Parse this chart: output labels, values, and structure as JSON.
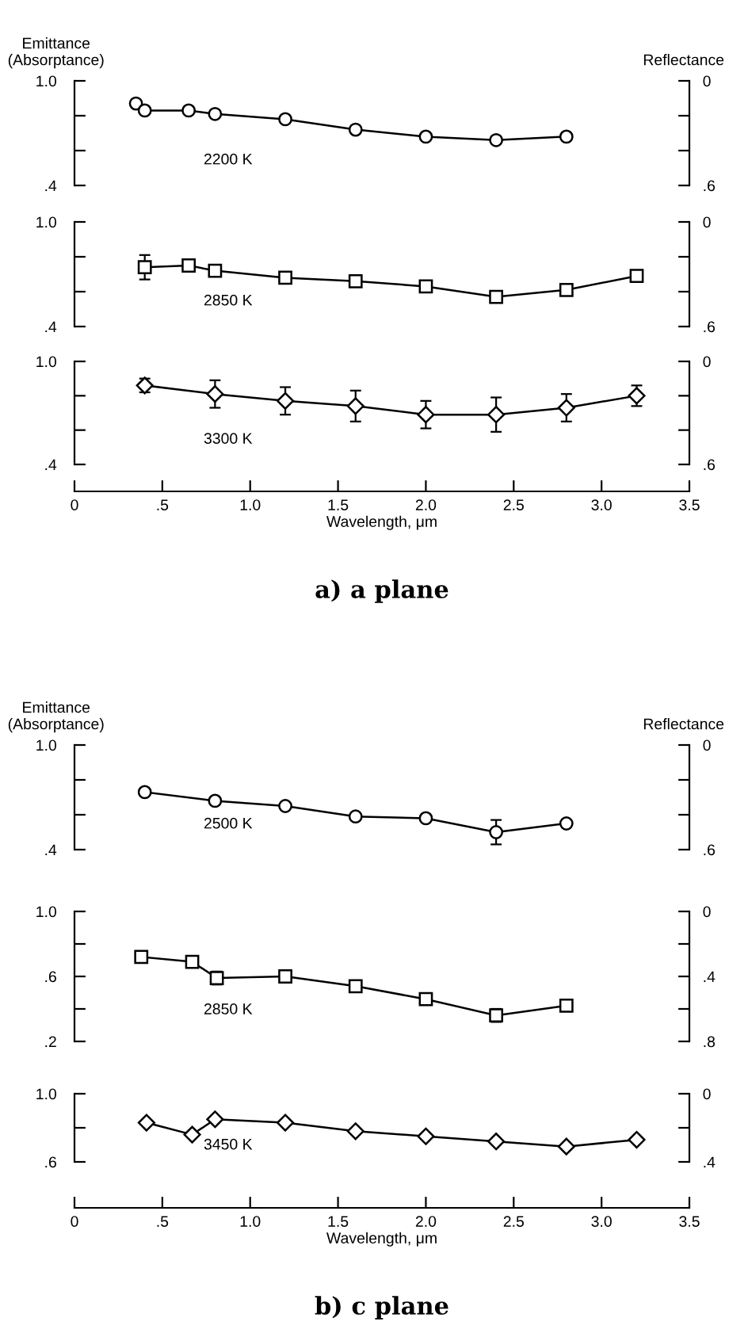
{
  "chart_data": [
    {
      "type": "line",
      "ylabel": "Emittance\n(Absorptance)",
      "y2label": "Reflectance",
      "x": [
        0.35,
        0.4,
        0.65,
        0.8,
        1.2,
        1.6,
        2.0,
        2.4,
        2.8
      ],
      "series": [
        {
          "name": "2200 K",
          "color": "#000000",
          "marker": "circle",
          "values": [
            0.87,
            0.83,
            0.83,
            0.81,
            0.78,
            0.72,
            0.68,
            0.66,
            0.68
          ]
        }
      ],
      "xlim": [
        0,
        3.5
      ],
      "ylim": [
        0.4,
        1.0
      ],
      "yticks": [
        {
          "value": 0.4,
          "label": ".4"
        },
        {
          "value": 0.6,
          "label": null
        },
        {
          "value": 0.8,
          "label": null
        },
        {
          "value": 1.0,
          "label": "1.0"
        }
      ],
      "y2lim": [
        0.6,
        0
      ],
      "y2ticks": [
        {
          "value": 0.6,
          "label": ".6"
        },
        {
          "value": 0.4,
          "label": null
        },
        {
          "value": 0.2,
          "label": null
        },
        0
      ],
      "tick_labels": "y",
      "line_style": "solid"
    },
    {
      "type": "line",
      "x": [
        0.4,
        0.65,
        0.8,
        1.2,
        1.6,
        2.0,
        2.4,
        2.8,
        3.2
      ],
      "series": [
        {
          "name": "2850 K",
          "color": "#000000",
          "marker": "square",
          "values": [
            0.74,
            0.75,
            0.72,
            0.68,
            0.66,
            0.63,
            0.57,
            0.61,
            0.69
          ],
          "errors": [
            0.07,
            null,
            null,
            null,
            null,
            null,
            null,
            null,
            0.02
          ]
        }
      ],
      "xlim": [
        0,
        3.5
      ],
      "ylim": [
        0.4,
        1.0
      ],
      "yticks": [
        {
          "value": 0.4,
          "label": ".4"
        },
        {
          "value": 0.6,
          "label": null
        },
        {
          "value": 0.8,
          "label": null
        },
        {
          "value": 1.0,
          "label": "1.0"
        }
      ],
      "y2lim": [
        0.6,
        0
      ],
      "y2ticks": [
        {
          "value": 0.6,
          "label": ".6"
        },
        {
          "value": 0.4,
          "label": null
        },
        {
          "value": 0.2,
          "label": null
        },
        0
      ],
      "tick_labels": "y",
      "line_style": "solid"
    },
    {
      "type": "line",
      "xlabel": "Wavelength, μm",
      "annotations": [
        "a) a plane"
      ],
      "x": [
        0.4,
        0.8,
        1.2,
        1.6,
        2.0,
        2.4,
        2.8,
        3.2
      ],
      "series": [
        {
          "name": "3300 K",
          "color": "#000000",
          "marker": "diamond",
          "values": [
            0.86,
            0.81,
            0.77,
            0.74,
            0.69,
            0.69,
            0.73,
            0.8
          ],
          "errors": [
            0.04,
            0.08,
            0.08,
            0.09,
            0.08,
            0.1,
            0.08,
            0.06
          ]
        }
      ],
      "xlim": [
        0,
        3.5
      ],
      "xticks": [
        0,
        {
          "value": 0.5,
          "label": ".5"
        },
        {
          "value": 1,
          "label": "1.0"
        },
        1.5,
        {
          "value": 2,
          "label": "2.0"
        },
        2.5,
        {
          "value": 3,
          "label": "3.0"
        },
        3.5
      ],
      "ylim": [
        0.4,
        1.0
      ],
      "yticks": [
        {
          "value": 0.4,
          "label": ".4"
        },
        {
          "value": 0.6,
          "label": null
        },
        {
          "value": 0.8,
          "label": null
        },
        {
          "value": 1.0,
          "label": "1.0"
        }
      ],
      "y2lim": [
        0.6,
        0
      ],
      "y2ticks": [
        {
          "value": 0.6,
          "label": ".6"
        },
        {
          "value": 0.4,
          "label": null
        },
        {
          "value": 0.2,
          "label": null
        },
        0
      ],
      "line_style": "solid"
    },
    {
      "type": "line",
      "ylabel": "Emittance\n(Absorptance)",
      "y2label": "Reflectance",
      "x": [
        0.4,
        0.8,
        1.2,
        1.6,
        2.0,
        2.4,
        2.8
      ],
      "series": [
        {
          "name": "2500 K",
          "color": "#000000",
          "marker": "circle",
          "values": [
            0.73,
            0.68,
            0.65,
            0.59,
            0.58,
            0.5,
            0.55
          ],
          "errors": [
            null,
            null,
            null,
            null,
            null,
            0.07,
            null
          ]
        }
      ],
      "xlim": [
        0,
        3.5
      ],
      "ylim": [
        0.4,
        1.0
      ],
      "yticks": [
        {
          "value": 0.4,
          "label": ".4"
        },
        {
          "value": 0.6,
          "label": null
        },
        {
          "value": 0.8,
          "label": null
        },
        {
          "value": 1.0,
          "label": "1.0"
        }
      ],
      "y2lim": [
        0.6,
        0
      ],
      "y2ticks": [
        {
          "value": 0.6,
          "label": ".6"
        },
        {
          "value": 0.4,
          "label": null
        },
        {
          "value": 0.2,
          "label": null
        },
        0
      ],
      "tick_labels": "y",
      "line_style": "solid"
    },
    {
      "type": "line",
      "x": [
        0.38,
        0.67,
        0.81,
        1.2,
        1.6,
        2.0,
        2.4,
        2.8
      ],
      "series": [
        {
          "name": "2850 K",
          "color": "#000000",
          "marker": "square",
          "values": [
            0.72,
            0.69,
            0.59,
            0.6,
            0.54,
            0.46,
            0.36,
            0.42
          ],
          "errors": [
            0.02,
            null,
            0.04,
            null,
            null,
            null,
            0.04,
            0.03
          ]
        }
      ],
      "xlim": [
        0,
        3.5
      ],
      "ylim": [
        0.2,
        1.0
      ],
      "yticks": [
        {
          "value": 0.2,
          "label": ".2"
        },
        {
          "value": 0.4,
          "label": null
        },
        {
          "value": 0.6,
          "label": ".6"
        },
        {
          "value": 0.8,
          "label": null
        },
        {
          "value": 1.0,
          "label": "1.0"
        }
      ],
      "y2lim": [
        0.8,
        0
      ],
      "y2ticks": [
        {
          "value": 0.8,
          "label": ".8"
        },
        {
          "value": 0.6,
          "label": null
        },
        {
          "value": 0.4,
          "label": ".4"
        },
        {
          "value": 0.2,
          "label": null
        },
        0
      ],
      "tick_labels": "y",
      "line_style": "solid"
    },
    {
      "type": "line",
      "xlabel": "Wavelength, μm",
      "annotations": [
        "b) c plane"
      ],
      "x": [
        0.41,
        0.67,
        0.8,
        1.2,
        1.6,
        2.0,
        2.4,
        2.8,
        3.2
      ],
      "series": [
        {
          "name": "3450 K",
          "color": "#000000",
          "marker": "diamond",
          "values": [
            0.83,
            0.76,
            0.85,
            0.83,
            0.78,
            0.75,
            0.72,
            0.69,
            0.73
          ]
        }
      ],
      "xlim": [
        0,
        3.5
      ],
      "xticks": [
        0,
        {
          "value": 0.5,
          "label": ".5"
        },
        {
          "value": 1,
          "label": "1.0"
        },
        1.5,
        {
          "value": 2,
          "label": "2.0"
        },
        2.5,
        {
          "value": 3,
          "label": "3.0"
        },
        3.5
      ],
      "ylim": [
        0.6,
        1.0
      ],
      "yticks": [
        {
          "value": 0.6,
          "label": ".6"
        },
        {
          "value": 0.8,
          "label": null
        },
        {
          "value": 1.0,
          "label": "1.0"
        }
      ],
      "y2lim": [
        0.4,
        0
      ],
      "y2ticks": [
        {
          "value": 0.4,
          "label": ".4"
        },
        {
          "value": 0.2,
          "label": null
        },
        0
      ],
      "line_style": "solid"
    }
  ]
}
